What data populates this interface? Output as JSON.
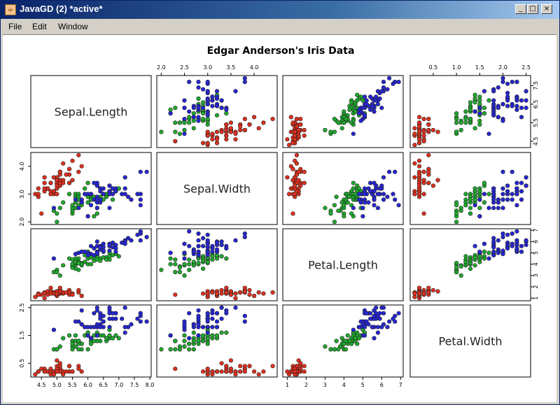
{
  "window": {
    "title": "JavaGD (2) *active*",
    "icon": "java-icon",
    "buttons": {
      "minimize": "_",
      "maximize": "□",
      "close": "×"
    }
  },
  "menu": {
    "file": "File",
    "edit": "Edit",
    "window": "Window"
  },
  "chart_data": {
    "type": "scatter",
    "subtype": "scatterplot-matrix",
    "title": "Edgar Anderson's Iris Data",
    "variables": [
      "Sepal.Length",
      "Sepal.Width",
      "Petal.Length",
      "Petal.Width"
    ],
    "axis_ranges": {
      "Sepal.Length": [
        4.3,
        7.9
      ],
      "Sepal.Width": [
        2.0,
        4.4
      ],
      "Petal.Length": [
        1.0,
        6.9
      ],
      "Petal.Width": [
        0.1,
        2.5
      ]
    },
    "ticks": {
      "Sepal.Length": [
        "4.5",
        "5.0",
        "5.5",
        "6.0",
        "6.5",
        "7.0",
        "7.5",
        "8.0"
      ],
      "Sepal.Length_right": [
        "4.5",
        "5.5",
        "6.5",
        "7.5"
      ],
      "Sepal.Width_top": [
        "2.0",
        "2.5",
        "3.0",
        "3.5",
        "4.0"
      ],
      "Sepal.Width_left": [
        "2.0",
        "3.0",
        "4.0"
      ],
      "Petal.Length_right": [
        "1",
        "2",
        "3",
        "4",
        "5",
        "6",
        "7"
      ],
      "Petal.Length_bottom": [
        "1",
        "2",
        "3",
        "4",
        "5",
        "6",
        "7"
      ],
      "Petal.Width_top": [
        "0.5",
        "1.0",
        "1.5",
        "2.0",
        "2.5"
      ],
      "Petal.Width_left": [
        "0.5",
        "1.5",
        "2.5"
      ]
    },
    "species_colors": {
      "setosa": "#e0301e",
      "versicolor": "#1faa2d",
      "virginica": "#2626d6"
    },
    "series": [
      {
        "color": "#e0301e",
        "points": [
          [
            5.1,
            3.5,
            1.4,
            0.2
          ],
          [
            4.9,
            3.0,
            1.4,
            0.2
          ],
          [
            4.7,
            3.2,
            1.3,
            0.2
          ],
          [
            4.6,
            3.1,
            1.5,
            0.2
          ],
          [
            5.0,
            3.6,
            1.4,
            0.2
          ],
          [
            5.4,
            3.9,
            1.7,
            0.4
          ],
          [
            4.6,
            3.4,
            1.4,
            0.3
          ],
          [
            5.0,
            3.4,
            1.5,
            0.2
          ],
          [
            4.4,
            2.9,
            1.4,
            0.2
          ],
          [
            4.9,
            3.1,
            1.5,
            0.1
          ],
          [
            5.4,
            3.7,
            1.5,
            0.2
          ],
          [
            4.8,
            3.4,
            1.6,
            0.2
          ],
          [
            4.8,
            3.0,
            1.4,
            0.1
          ],
          [
            4.3,
            3.0,
            1.1,
            0.1
          ],
          [
            5.8,
            4.0,
            1.2,
            0.2
          ],
          [
            5.7,
            4.4,
            1.5,
            0.4
          ],
          [
            5.4,
            3.9,
            1.3,
            0.4
          ],
          [
            5.1,
            3.5,
            1.4,
            0.3
          ],
          [
            5.7,
            3.8,
            1.7,
            0.3
          ],
          [
            5.1,
            3.8,
            1.5,
            0.3
          ],
          [
            5.4,
            3.4,
            1.7,
            0.2
          ],
          [
            5.1,
            3.7,
            1.5,
            0.4
          ],
          [
            4.6,
            3.6,
            1.0,
            0.2
          ],
          [
            5.1,
            3.3,
            1.7,
            0.5
          ],
          [
            4.8,
            3.4,
            1.9,
            0.2
          ],
          [
            5.0,
            3.0,
            1.6,
            0.2
          ],
          [
            5.0,
            3.4,
            1.6,
            0.4
          ],
          [
            5.2,
            3.5,
            1.5,
            0.2
          ],
          [
            5.2,
            3.4,
            1.4,
            0.2
          ],
          [
            4.7,
            3.2,
            1.6,
            0.2
          ],
          [
            4.8,
            3.1,
            1.6,
            0.2
          ],
          [
            5.4,
            3.4,
            1.5,
            0.4
          ],
          [
            5.2,
            4.1,
            1.5,
            0.1
          ],
          [
            5.5,
            4.2,
            1.4,
            0.2
          ],
          [
            4.9,
            3.1,
            1.5,
            0.2
          ],
          [
            5.0,
            3.2,
            1.2,
            0.2
          ],
          [
            5.5,
            3.5,
            1.3,
            0.2
          ],
          [
            4.9,
            3.6,
            1.4,
            0.1
          ],
          [
            4.4,
            3.0,
            1.3,
            0.2
          ],
          [
            5.1,
            3.4,
            1.5,
            0.2
          ],
          [
            5.0,
            3.5,
            1.3,
            0.3
          ],
          [
            4.5,
            2.3,
            1.3,
            0.3
          ],
          [
            4.4,
            3.2,
            1.3,
            0.2
          ],
          [
            5.0,
            3.5,
            1.6,
            0.6
          ],
          [
            5.1,
            3.8,
            1.9,
            0.4
          ],
          [
            4.8,
            3.0,
            1.4,
            0.3
          ],
          [
            5.1,
            3.8,
            1.6,
            0.2
          ],
          [
            4.6,
            3.2,
            1.4,
            0.2
          ],
          [
            5.3,
            3.7,
            1.5,
            0.2
          ],
          [
            5.0,
            3.3,
            1.4,
            0.2
          ]
        ]
      },
      {
        "color": "#1faa2d",
        "points": [
          [
            7.0,
            3.2,
            4.7,
            1.4
          ],
          [
            6.4,
            3.2,
            4.5,
            1.5
          ],
          [
            6.9,
            3.1,
            4.9,
            1.5
          ],
          [
            5.5,
            2.3,
            4.0,
            1.3
          ],
          [
            6.5,
            2.8,
            4.6,
            1.5
          ],
          [
            5.7,
            2.8,
            4.5,
            1.3
          ],
          [
            6.3,
            3.3,
            4.7,
            1.6
          ],
          [
            4.9,
            2.4,
            3.3,
            1.0
          ],
          [
            6.6,
            2.9,
            4.6,
            1.3
          ],
          [
            5.2,
            2.7,
            3.9,
            1.4
          ],
          [
            5.0,
            2.0,
            3.5,
            1.0
          ],
          [
            5.9,
            3.0,
            4.2,
            1.5
          ],
          [
            6.0,
            2.2,
            4.0,
            1.0
          ],
          [
            6.1,
            2.9,
            4.7,
            1.4
          ],
          [
            5.6,
            2.9,
            3.6,
            1.3
          ],
          [
            6.7,
            3.1,
            4.4,
            1.4
          ],
          [
            5.6,
            3.0,
            4.5,
            1.5
          ],
          [
            5.8,
            2.7,
            4.1,
            1.0
          ],
          [
            6.2,
            2.2,
            4.5,
            1.5
          ],
          [
            5.6,
            2.5,
            3.9,
            1.1
          ],
          [
            5.9,
            3.2,
            4.8,
            1.8
          ],
          [
            6.1,
            2.8,
            4.0,
            1.3
          ],
          [
            6.3,
            2.5,
            4.9,
            1.5
          ],
          [
            6.1,
            2.8,
            4.7,
            1.2
          ],
          [
            6.4,
            2.9,
            4.3,
            1.3
          ],
          [
            6.6,
            3.0,
            4.4,
            1.4
          ],
          [
            6.8,
            2.8,
            4.8,
            1.4
          ],
          [
            6.7,
            3.0,
            5.0,
            1.7
          ],
          [
            6.0,
            2.9,
            4.5,
            1.5
          ],
          [
            5.7,
            2.6,
            3.5,
            1.0
          ],
          [
            5.5,
            2.4,
            3.8,
            1.1
          ],
          [
            5.5,
            2.4,
            3.7,
            1.0
          ],
          [
            5.8,
            2.7,
            3.9,
            1.2
          ],
          [
            6.0,
            2.7,
            5.1,
            1.6
          ],
          [
            5.4,
            3.0,
            4.5,
            1.5
          ],
          [
            6.0,
            3.4,
            4.5,
            1.6
          ],
          [
            6.7,
            3.1,
            4.7,
            1.5
          ],
          [
            6.3,
            2.3,
            4.4,
            1.3
          ],
          [
            5.6,
            3.0,
            4.1,
            1.3
          ],
          [
            5.5,
            2.5,
            4.0,
            1.3
          ],
          [
            5.5,
            2.6,
            4.4,
            1.2
          ],
          [
            6.1,
            3.0,
            4.6,
            1.4
          ],
          [
            5.8,
            2.6,
            4.0,
            1.2
          ],
          [
            5.0,
            2.3,
            3.3,
            1.0
          ],
          [
            5.6,
            2.7,
            4.2,
            1.3
          ],
          [
            5.7,
            3.0,
            4.2,
            1.2
          ],
          [
            5.7,
            2.9,
            4.2,
            1.3
          ],
          [
            6.2,
            2.9,
            4.3,
            1.3
          ],
          [
            5.1,
            2.5,
            3.0,
            1.1
          ],
          [
            5.7,
            2.8,
            4.1,
            1.3
          ]
        ]
      },
      {
        "color": "#2626d6",
        "points": [
          [
            6.3,
            3.3,
            6.0,
            2.5
          ],
          [
            5.8,
            2.7,
            5.1,
            1.9
          ],
          [
            7.1,
            3.0,
            5.9,
            2.1
          ],
          [
            6.3,
            2.9,
            5.6,
            1.8
          ],
          [
            6.5,
            3.0,
            5.8,
            2.2
          ],
          [
            7.6,
            3.0,
            6.6,
            2.1
          ],
          [
            4.9,
            2.5,
            4.5,
            1.7
          ],
          [
            7.3,
            2.9,
            6.3,
            1.8
          ],
          [
            6.7,
            2.5,
            5.8,
            1.8
          ],
          [
            7.2,
            3.6,
            6.1,
            2.5
          ],
          [
            6.5,
            3.2,
            5.1,
            2.0
          ],
          [
            6.4,
            2.7,
            5.3,
            1.9
          ],
          [
            6.8,
            3.0,
            5.5,
            2.1
          ],
          [
            5.7,
            2.5,
            5.0,
            2.0
          ],
          [
            5.8,
            2.8,
            5.1,
            2.4
          ],
          [
            6.4,
            3.2,
            5.3,
            2.3
          ],
          [
            6.5,
            3.0,
            5.5,
            1.8
          ],
          [
            7.7,
            3.8,
            6.7,
            2.2
          ],
          [
            7.7,
            2.6,
            6.9,
            2.3
          ],
          [
            6.0,
            2.2,
            5.0,
            1.5
          ],
          [
            6.9,
            3.2,
            5.7,
            2.3
          ],
          [
            5.6,
            2.8,
            4.9,
            2.0
          ],
          [
            7.7,
            2.8,
            6.7,
            2.0
          ],
          [
            6.3,
            2.7,
            4.9,
            1.8
          ],
          [
            6.7,
            3.3,
            5.7,
            2.1
          ],
          [
            7.2,
            3.2,
            6.0,
            1.8
          ],
          [
            6.2,
            2.8,
            4.8,
            1.8
          ],
          [
            6.1,
            3.0,
            4.9,
            1.8
          ],
          [
            6.4,
            2.8,
            5.6,
            2.1
          ],
          [
            7.2,
            3.0,
            5.8,
            1.6
          ],
          [
            7.4,
            2.8,
            6.1,
            1.9
          ],
          [
            7.9,
            3.8,
            6.4,
            2.0
          ],
          [
            6.4,
            2.8,
            5.6,
            2.2
          ],
          [
            6.3,
            2.8,
            5.1,
            1.5
          ],
          [
            6.1,
            2.6,
            5.6,
            1.4
          ],
          [
            7.7,
            3.0,
            6.1,
            2.3
          ],
          [
            6.3,
            3.4,
            5.6,
            2.4
          ],
          [
            6.4,
            3.1,
            5.5,
            1.8
          ],
          [
            6.0,
            3.0,
            4.8,
            1.8
          ],
          [
            6.9,
            3.1,
            5.4,
            2.1
          ],
          [
            6.7,
            3.1,
            5.6,
            2.4
          ],
          [
            6.9,
            3.1,
            5.1,
            2.3
          ],
          [
            5.8,
            2.7,
            5.1,
            1.9
          ],
          [
            6.8,
            3.2,
            5.9,
            2.3
          ],
          [
            6.7,
            3.3,
            5.7,
            2.5
          ],
          [
            6.7,
            3.0,
            5.2,
            2.3
          ],
          [
            6.3,
            2.5,
            5.0,
            1.9
          ],
          [
            6.5,
            3.0,
            5.2,
            2.0
          ],
          [
            6.2,
            3.4,
            5.4,
            2.3
          ],
          [
            5.9,
            3.0,
            5.1,
            1.8
          ]
        ]
      }
    ],
    "grid": false,
    "legend": "none"
  }
}
